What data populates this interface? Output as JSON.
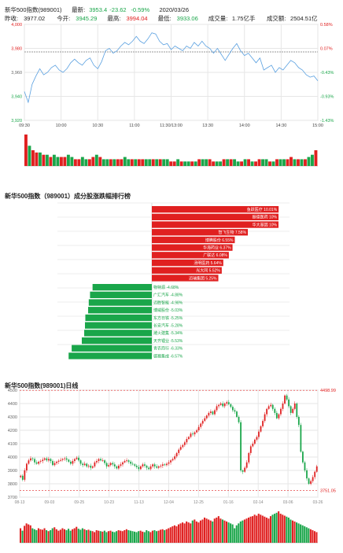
{
  "header": {
    "row1": {
      "name": "新华500指数(989001)",
      "latest_label": "最新:",
      "latest": "3953.4",
      "change": "-23.62",
      "change_pct": "-0.59%",
      "date": "2020/03/26"
    },
    "row2": {
      "prev_label": "昨收:",
      "prev": "3977.02",
      "open_label": "今开:",
      "open": "3945.29",
      "high_label": "最高:",
      "high": "3994.04",
      "low_label": "最低:",
      "low": "3933.06",
      "vol_label": "成交量:",
      "vol": "1.75亿手",
      "amt_label": "成交额:",
      "amt": "2504.51亿"
    }
  },
  "colors": {
    "up": "#e02020",
    "down": "#1aa64a",
    "line": "#5aa0e0",
    "grid": "#e6e6e6"
  },
  "chart_data": [
    {
      "type": "line",
      "yticks_left": [
        "4,000",
        "3,980",
        "3,960",
        "3,940",
        "3,920"
      ],
      "yticks_right": [
        "0.58%",
        "0.07%",
        "-0.43%",
        "-0.93%",
        "-1.43%"
      ],
      "ylim": [
        3920,
        4000
      ],
      "prev_close": 3977.02,
      "xticks": [
        "09:30",
        "10:00",
        "10:30",
        "11:00",
        "11:30/13:00",
        "13:30",
        "14:00",
        "14:30",
        "15:00"
      ],
      "price_series": [
        3944,
        3935,
        3950,
        3957,
        3963,
        3958,
        3960,
        3964,
        3966,
        3962,
        3960,
        3963,
        3968,
        3971,
        3968,
        3966,
        3970,
        3972,
        3966,
        3963,
        3969,
        3978,
        3980,
        3976,
        3978,
        3982,
        3985,
        3983,
        3986,
        3990,
        3986,
        3984,
        3988,
        3993,
        3992,
        3986,
        3983,
        3984,
        3979,
        3982,
        3980,
        3978,
        3982,
        3980,
        3985,
        3982,
        3986,
        3982,
        3980,
        3976,
        3980,
        3975,
        3970,
        3975,
        3980,
        3984,
        3978,
        3974,
        3976,
        3972,
        3968,
        3972,
        3962,
        3964,
        3966,
        3960,
        3964,
        3962,
        3966,
        3970,
        3968,
        3964,
        3962,
        3958,
        3956,
        3957,
        3953
      ],
      "volume_bars": [
        14,
        9,
        7,
        6,
        6,
        5,
        5,
        4,
        5,
        4,
        4,
        4,
        5,
        4,
        3,
        3,
        4,
        3,
        3,
        4,
        5,
        4,
        3,
        3,
        3,
        3,
        3,
        3,
        4,
        3,
        3,
        3,
        3,
        3,
        3,
        3,
        3,
        3,
        3,
        3,
        3,
        2,
        2,
        3,
        2,
        2,
        2,
        2,
        2,
        3,
        3,
        3,
        3,
        2,
        2,
        2,
        3,
        3,
        3,
        3,
        2,
        2,
        3,
        3,
        2,
        2,
        3,
        3,
        3,
        2,
        2,
        3,
        3,
        3,
        3,
        4,
        3,
        3,
        3,
        3,
        4,
        5,
        7
      ],
      "volume_up": [
        1,
        0,
        1,
        1,
        0,
        1,
        0,
        1,
        0,
        0,
        1,
        1,
        0,
        0,
        1,
        1,
        0,
        0,
        1,
        1,
        0,
        1,
        0,
        0,
        1,
        0,
        1,
        1,
        0,
        0,
        1,
        0,
        1,
        1,
        0,
        0,
        1,
        0,
        1,
        0,
        0,
        1,
        1,
        0,
        1,
        0,
        0,
        1,
        0,
        1,
        0,
        0,
        1,
        1,
        0,
        0,
        1,
        0,
        1,
        0,
        0,
        1,
        0,
        1,
        0,
        1,
        1,
        0,
        0,
        1,
        0,
        1,
        0,
        0,
        1,
        1,
        0,
        1,
        0,
        1,
        0,
        0,
        1
      ]
    },
    {
      "type": "bar",
      "title": "新华500指数（989001）成分股涨跌幅排行榜",
      "gainers": [
        {
          "name": "鱼跃医疗",
          "value": 10.01
        },
        {
          "name": "振德医药",
          "value": 10
        },
        {
          "name": "华大基因",
          "value": 10
        },
        {
          "name": "智飞生物",
          "value": 7.58
        },
        {
          "name": "博腾股份",
          "value": 6.55
        },
        {
          "name": "华海药业",
          "value": 6.37
        },
        {
          "name": "广联达",
          "value": 6.08
        },
        {
          "name": "汤明医药",
          "value": 5.64
        },
        {
          "name": "光大同",
          "value": 5.52
        },
        {
          "name": "迈瑞集团",
          "value": 5.25
        }
      ],
      "losers": [
        {
          "name": "物特源",
          "value": -4.68
        },
        {
          "name": "广汇汽车",
          "value": -4.88
        },
        {
          "name": "迈胜智能",
          "value": -4.98
        },
        {
          "name": "博威股份",
          "value": -5.03
        },
        {
          "name": "东方日铁",
          "value": -5.25
        },
        {
          "name": "长安汽车",
          "value": -5.28
        },
        {
          "name": "潍火建集",
          "value": -5.34
        },
        {
          "name": "天齐锂业",
          "value": -5.53
        },
        {
          "name": "青农商行",
          "value": -6.33
        },
        {
          "name": "德赛集成",
          "value": -6.57
        }
      ]
    },
    {
      "type": "bar",
      "title": "新华500指数(989001)日线",
      "yticks": [
        "4500",
        "4400",
        "4300",
        "4200",
        "4100",
        "4000",
        "3900",
        "3800",
        "3700"
      ],
      "ylim": [
        3700,
        4500
      ],
      "high_label": "4498.99",
      "low_label": "3751.05",
      "xticks": [
        "08-13",
        "09-03",
        "09-25",
        "10-23",
        "11-13",
        "12-04",
        "12-25",
        "01-16",
        "02-14",
        "03-06",
        "03-26"
      ],
      "closes": [
        3860,
        3830,
        3900,
        3950,
        3975,
        3990,
        3985,
        3960,
        3950,
        3965,
        3970,
        3980,
        3990,
        3975,
        3985,
        3970,
        3940,
        3955,
        3965,
        3972,
        3978,
        3985,
        3990,
        3980,
        3965,
        3950,
        3970,
        3985,
        3995,
        3975,
        3950,
        3940,
        3950,
        3930,
        3935,
        3920,
        3930,
        3960,
        3970,
        3985,
        3975,
        3975,
        3955,
        3930,
        3940,
        3955,
        3945,
        3930,
        3915,
        3935,
        3945,
        3960,
        3970,
        3975,
        3965,
        3950,
        3945,
        3935,
        3925,
        3910,
        3930,
        3945,
        3935,
        3920,
        3910,
        3930,
        3945,
        3930,
        3920,
        3930,
        3935,
        3945,
        3940,
        3950,
        3960,
        3975,
        3985,
        4005,
        4030,
        4055,
        4075,
        4090,
        4110,
        4135,
        4150,
        4175,
        4170,
        4185,
        4200,
        4225,
        4250,
        4270,
        4290,
        4310,
        4330,
        4340,
        4320,
        4350,
        4380,
        4390,
        4400,
        4380,
        4400,
        4410,
        4395,
        4375,
        4350,
        4340,
        4300,
        4260,
        3900,
        3890,
        3920,
        3960,
        4030,
        4080,
        4100,
        4130,
        4150,
        4190,
        4230,
        4270,
        4320,
        4360,
        4380,
        4390,
        4360,
        4330,
        4290,
        4320,
        4360,
        4400,
        4460,
        4430,
        4380,
        4330,
        4360,
        4400,
        4300,
        4240,
        4040,
        3960,
        3900,
        3840,
        3800,
        3820,
        3850,
        3890,
        3930
      ],
      "volume_bars": [
        30,
        25,
        35,
        40,
        38,
        36,
        30,
        28,
        26,
        30,
        28,
        27,
        30,
        26,
        24,
        26,
        30,
        32,
        28,
        25,
        27,
        30,
        28,
        26,
        29,
        25,
        28,
        30,
        33,
        29,
        27,
        30,
        28,
        26,
        27,
        25,
        24,
        22,
        26,
        25,
        24,
        23,
        25,
        22,
        24,
        25,
        23,
        22,
        24,
        26,
        25,
        24,
        26,
        28,
        26,
        25,
        24,
        23,
        22,
        24,
        25,
        23,
        22,
        26,
        24,
        22,
        25,
        26,
        24,
        25,
        27,
        28,
        26,
        28,
        30,
        32,
        34,
        36,
        34,
        38,
        40,
        42,
        40,
        44,
        42,
        40,
        46,
        48,
        44,
        42,
        46,
        48,
        52,
        50,
        48,
        46,
        44,
        50,
        52,
        55,
        50,
        48,
        46,
        44,
        42,
        40,
        38,
        30,
        36,
        40,
        44,
        46,
        48,
        50,
        52,
        54,
        55,
        58,
        56,
        60,
        58,
        56,
        54,
        52,
        50,
        55,
        58,
        60,
        62,
        65,
        60,
        58,
        56,
        54,
        52,
        48,
        46,
        44,
        42,
        40,
        38,
        36,
        34,
        32,
        30,
        28,
        26,
        24,
        22
      ]
    }
  ]
}
